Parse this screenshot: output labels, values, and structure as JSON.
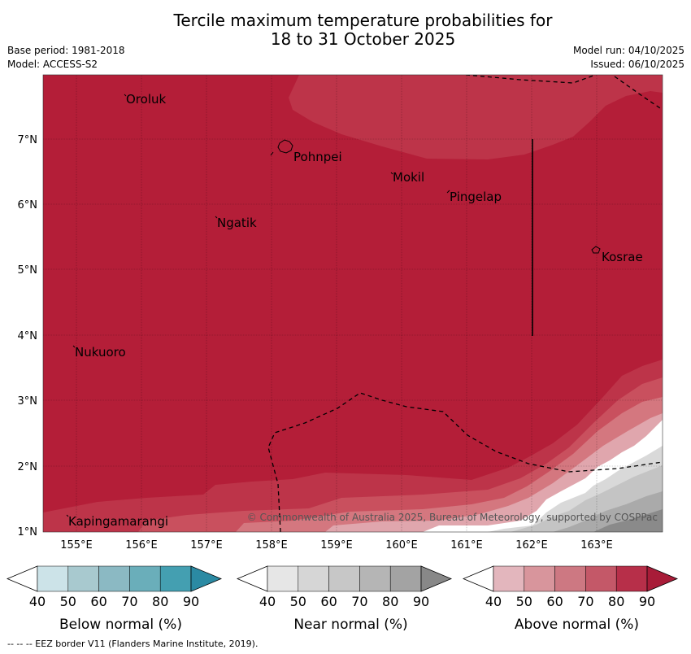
{
  "title": {
    "line1": "Tercile maximum temperature probabilities for",
    "line2": "18 to 31 October 2025"
  },
  "meta": {
    "base_period": "Base period: 1981-2018",
    "model": "Model: ACCESS-S2",
    "model_run": "Model run: 04/10/2025",
    "issued": "Issued: 06/10/2025"
  },
  "map": {
    "x_ticks": [
      "155°E",
      "156°E",
      "157°E",
      "158°E",
      "159°E",
      "160°E",
      "161°E",
      "162°E",
      "163°E"
    ],
    "y_ticks": [
      "7°N",
      "6°N",
      "5°N",
      "4°N",
      "3°N",
      "2°N",
      "1°N"
    ],
    "places": [
      "Oroluk",
      "Pohnpei",
      "Mokil",
      "Pingelap",
      "Ngatik",
      "Kosrae",
      "Nukuoro",
      "Kapingamarangi"
    ],
    "copyright": "© Commonwealth of Australia 2025, Bureau of Meteorology, supported by COSPPac",
    "colors": {
      "above_80_90": "#b41e38",
      "above_70_80": "#bd3449",
      "above_60_70": "#c9505e",
      "above_50_60": "#d4777f",
      "above_40_50": "#e0a6ad",
      "near_40_50": "#d9d9d9",
      "near_50_60": "#c4c4c4",
      "near_60_70": "#aaaaaa",
      "near_70_80": "#8a8a8a"
    }
  },
  "colorbars": [
    {
      "name": "below",
      "title": "Below normal (%)",
      "ticks": [
        "40",
        "50",
        "60",
        "70",
        "80",
        "90"
      ],
      "colors": [
        "#cce3e8",
        "#a8c9cf",
        "#8bb9c3",
        "#6aaeba",
        "#449fb1",
        "#2b8aa3"
      ]
    },
    {
      "name": "near",
      "title": "Near normal (%)",
      "ticks": [
        "40",
        "50",
        "60",
        "70",
        "80",
        "90"
      ],
      "colors": [
        "#e6e6e6",
        "#d6d6d6",
        "#c7c7c7",
        "#b5b5b5",
        "#a3a3a3",
        "#888888"
      ]
    },
    {
      "name": "above",
      "title": "Above normal (%)",
      "ticks": [
        "40",
        "50",
        "60",
        "70",
        "80",
        "90"
      ],
      "colors": [
        "#e3b6bd",
        "#d8959c",
        "#cd7882",
        "#c45868",
        "#b72f49",
        "#a81c38"
      ]
    }
  ],
  "footer": "--  --  -- EEZ border V11 (Flanders Marine Institute, 2019)."
}
